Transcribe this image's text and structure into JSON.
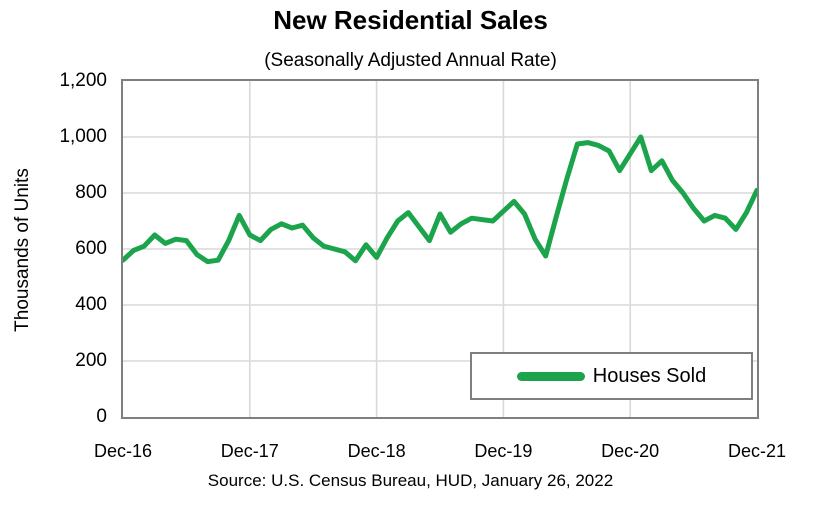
{
  "title": "New Residential Sales",
  "subtitle": "(Seasonally Adjusted Annual Rate)",
  "source": "Source:  U.S. Census Bureau, HUD, January 26, 2022",
  "y_axis_title": "Thousands of Units",
  "legend": {
    "label": "Houses Sold"
  },
  "colors": {
    "line": "#1CA44C",
    "grid": "#D9D9D9",
    "plot_border": "#7F7F7F",
    "text": "#000000",
    "background": "#FFFFFF"
  },
  "chart_data": {
    "type": "line",
    "title": "New Residential Sales",
    "subtitle": "(Seasonally Adjusted Annual Rate)",
    "ylabel": "Thousands of Units",
    "xlabel": "",
    "ylim": [
      0,
      1200
    ],
    "y_ticks": [
      0,
      200,
      400,
      600,
      800,
      1000,
      1200
    ],
    "y_tick_labels": [
      "0",
      "200",
      "400",
      "600",
      "800",
      "1,000",
      "1,200"
    ],
    "x_tick_labels": [
      "Dec-16",
      "Dec-17",
      "Dec-18",
      "Dec-19",
      "Dec-20",
      "Dec-21"
    ],
    "grid": true,
    "legend_position": "inside-bottom-right",
    "series": [
      {
        "name": "Houses Sold",
        "color": "#1CA44C",
        "x": [
          "Dec-16",
          "Jan-17",
          "Feb-17",
          "Mar-17",
          "Apr-17",
          "May-17",
          "Jun-17",
          "Jul-17",
          "Aug-17",
          "Sep-17",
          "Oct-17",
          "Nov-17",
          "Dec-17",
          "Jan-18",
          "Feb-18",
          "Mar-18",
          "Apr-18",
          "May-18",
          "Jun-18",
          "Jul-18",
          "Aug-18",
          "Sep-18",
          "Oct-18",
          "Nov-18",
          "Dec-18",
          "Jan-19",
          "Feb-19",
          "Mar-19",
          "Apr-19",
          "May-19",
          "Jun-19",
          "Jul-19",
          "Aug-19",
          "Sep-19",
          "Oct-19",
          "Nov-19",
          "Dec-19",
          "Jan-20",
          "Feb-20",
          "Mar-20",
          "Apr-20",
          "May-20",
          "Jun-20",
          "Jul-20",
          "Aug-20",
          "Sep-20",
          "Oct-20",
          "Nov-20",
          "Dec-20",
          "Jan-21",
          "Feb-21",
          "Mar-21",
          "Apr-21",
          "May-21",
          "Jun-21",
          "Jul-21",
          "Aug-21",
          "Sep-21",
          "Oct-21",
          "Nov-21",
          "Dec-21"
        ],
        "values": [
          560,
          595,
          610,
          650,
          620,
          635,
          630,
          580,
          555,
          560,
          630,
          720,
          650,
          630,
          670,
          690,
          675,
          685,
          640,
          610,
          600,
          590,
          558,
          615,
          570,
          640,
          700,
          730,
          680,
          630,
          725,
          660,
          690,
          710,
          705,
          700,
          735,
          770,
          725,
          635,
          575,
          715,
          850,
          975,
          980,
          970,
          950,
          880,
          940,
          1000,
          880,
          915,
          845,
          800,
          745,
          700,
          720,
          710,
          670,
          730,
          810
        ]
      }
    ]
  }
}
